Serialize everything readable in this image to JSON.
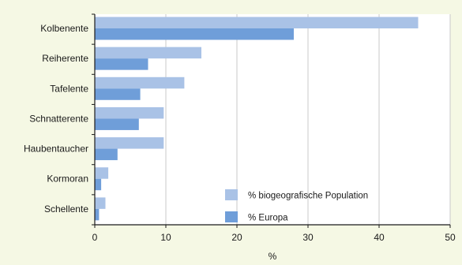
{
  "colors": {
    "background": "#f5f8e4",
    "plot_background": "#ffffff",
    "gridline": "#c9c9c9",
    "axis": "#1a1a1a",
    "series_biogeo": "#a9c2e6",
    "series_europa": "#6f9ed9"
  },
  "chart_data": {
    "type": "bar",
    "orientation": "horizontal",
    "categories": [
      "Kolbenente",
      "Reiherente",
      "Tafelente",
      "Schnatterente",
      "Haubentaucher",
      "Kormoran",
      "Schellente"
    ],
    "series": [
      {
        "name": "% biogeografische Population",
        "color": "#a9c2e6",
        "values": [
          45.5,
          15.0,
          12.6,
          9.7,
          9.7,
          1.9,
          1.5
        ]
      },
      {
        "name": "% Europa",
        "color": "#6f9ed9",
        "values": [
          28.0,
          7.5,
          6.4,
          6.2,
          3.2,
          0.9,
          0.6
        ]
      }
    ],
    "xlabel": "%",
    "ylabel": "",
    "xlim": [
      0,
      50
    ],
    "xticks": [
      0,
      10,
      20,
      30,
      40,
      50
    ],
    "grid": true,
    "legend_position": "bottom-right"
  }
}
